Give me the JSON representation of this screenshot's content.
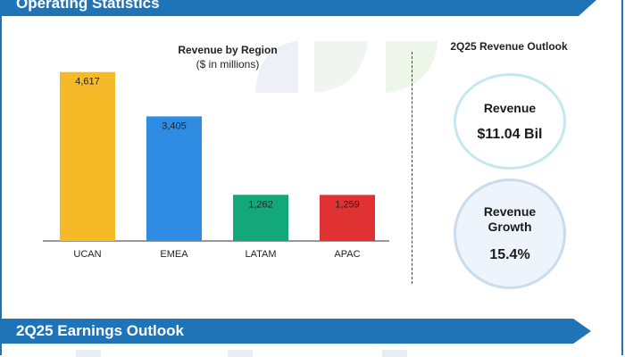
{
  "header": {
    "title": "Operating Statistics"
  },
  "chart_data": {
    "type": "bar",
    "title": "Revenue by Region",
    "subtitle": "($ in millions)",
    "categories": [
      "UCAN",
      "EMEA",
      "LATAM",
      "APAC"
    ],
    "values": [
      4617,
      3405,
      1262,
      1259
    ],
    "value_labels": [
      "4,617",
      "3,405",
      "1,262",
      "1,259"
    ],
    "colors": [
      "#f6b927",
      "#2e8de3",
      "#12a879",
      "#e03232"
    ],
    "ylim": [
      0,
      5000
    ],
    "grid": false,
    "legend": "none"
  },
  "outlook": {
    "title": "2Q25 Revenue Outlook",
    "revenue_label": "Revenue",
    "revenue_value": "$11.04 Bil",
    "growth_label_1": "Revenue",
    "growth_label_2": "Growth",
    "growth_value": "15.4%"
  },
  "section2": {
    "title": "2Q25 Earnings Outlook"
  }
}
